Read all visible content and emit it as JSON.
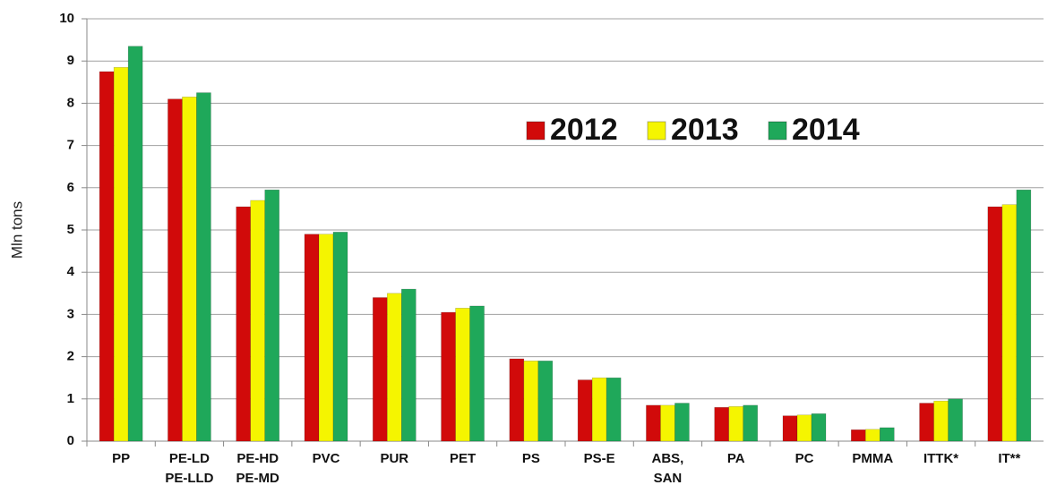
{
  "chart_data": {
    "type": "bar",
    "y_label": "Mln tons",
    "categories": [
      "PP",
      "PE-LD\nPE-LLD",
      "PE-HD\nPE-MD",
      "PVC",
      "PUR",
      "PET",
      "PS",
      "PS-E",
      "ABS,\nSAN",
      "PA",
      "PC",
      "PMMA",
      "ITTK*",
      "IT**"
    ],
    "series": [
      {
        "name": "2012",
        "color": "#d10a0a",
        "values": [
          8.75,
          8.1,
          5.55,
          4.9,
          3.4,
          3.05,
          1.95,
          1.45,
          0.85,
          0.8,
          0.6,
          0.27,
          0.9,
          5.55
        ]
      },
      {
        "name": "2013",
        "color": "#f5f500",
        "values": [
          8.85,
          8.15,
          5.7,
          4.9,
          3.5,
          3.15,
          1.9,
          1.5,
          0.85,
          0.82,
          0.62,
          0.28,
          0.95,
          5.6
        ]
      },
      {
        "name": "2014",
        "color": "#1fa85a",
        "values": [
          9.35,
          8.25,
          5.95,
          4.95,
          3.6,
          3.2,
          1.9,
          1.5,
          0.9,
          0.85,
          0.65,
          0.32,
          1.0,
          5.95
        ]
      }
    ],
    "ylim": [
      0,
      10
    ],
    "yticks": [
      0,
      1,
      2,
      3,
      4,
      5,
      6,
      7,
      8,
      9,
      10
    ],
    "grid": true
  }
}
